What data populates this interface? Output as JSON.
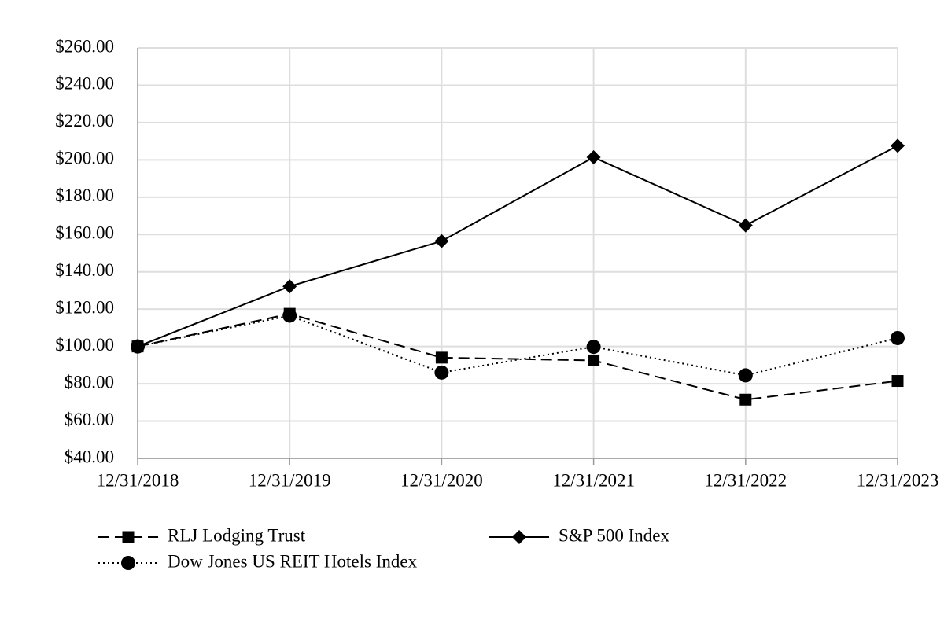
{
  "chart_data": {
    "type": "line",
    "categories": [
      "12/31/2018",
      "12/31/2019",
      "12/31/2020",
      "12/31/2021",
      "12/31/2022",
      "12/31/2023"
    ],
    "series": [
      {
        "name": "RLJ Lodging Trust",
        "color": "#000000",
        "marker": "square",
        "line_style": "dashed",
        "values": [
          100,
          117.5,
          94,
          92.5,
          71.5,
          81.5
        ]
      },
      {
        "name": "S&P 500 Index",
        "color": "#000000",
        "marker": "diamond",
        "line_style": "solid",
        "values": [
          100,
          132.2,
          156.5,
          201.4,
          164.9,
          207.6
        ]
      },
      {
        "name": "Dow Jones US REIT Hotels Index",
        "color": "#000000",
        "marker": "circle",
        "line_style": "dotted",
        "values": [
          100,
          116.5,
          86,
          99.8,
          84.5,
          104.5
        ]
      }
    ],
    "ylim": [
      40,
      260
    ],
    "yticks": [
      {
        "value": 40,
        "label": "$40.00"
      },
      {
        "value": 60,
        "label": "$60.00"
      },
      {
        "value": 80,
        "label": "$80.00"
      },
      {
        "value": 100,
        "label": "$100.00"
      },
      {
        "value": 120,
        "label": "$120.00"
      },
      {
        "value": 140,
        "label": "$140.00"
      },
      {
        "value": 160,
        "label": "$160.00"
      },
      {
        "value": 180,
        "label": "$180.00"
      },
      {
        "value": 200,
        "label": "$200.00"
      },
      {
        "value": 220,
        "label": "$220.00"
      },
      {
        "value": 240,
        "label": "$240.00"
      },
      {
        "value": 260,
        "label": "$260.00"
      }
    ],
    "grid": true
  }
}
